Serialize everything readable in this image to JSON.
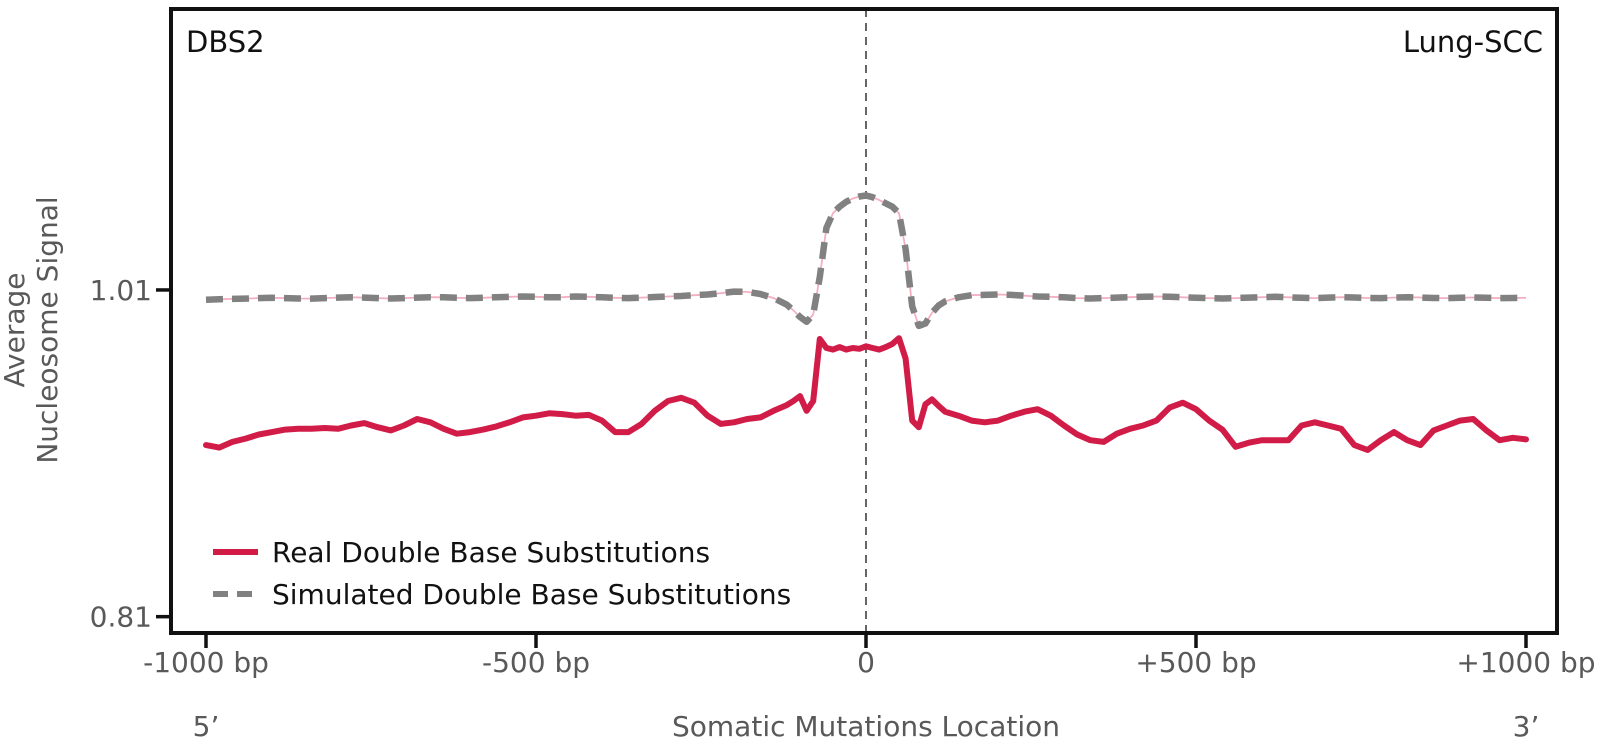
{
  "figure": {
    "signature_label": "DBS2",
    "cancer_type_label": "Lung-SCC",
    "five_prime_label": "5’",
    "three_prime_label": "3’"
  },
  "chart_data": {
    "type": "line",
    "title_left": "DBS2",
    "title_right": "Lung-SCC",
    "xlabel": "Somatic Mutations Location",
    "ylabel": "Average Nucleosome Signal",
    "ylabel_lines": [
      "Average",
      "Nucleosome Signal"
    ],
    "xlim": [
      -1000,
      1000
    ],
    "ylim": [
      0.8,
      1.182
    ],
    "grid": false,
    "legend_position": "lower left",
    "vline_x": 0,
    "vline_color": "#666666",
    "frame_color": "#111111",
    "x_ticks": [
      {
        "value": -1000,
        "label": "-1000 bp"
      },
      {
        "value": -500,
        "label": "-500 bp"
      },
      {
        "value": 0,
        "label": "0"
      },
      {
        "value": 500,
        "label": "+500 bp"
      },
      {
        "value": 1000,
        "label": "+1000 bp"
      }
    ],
    "y_ticks": [
      {
        "value": 1.01,
        "label": "1.01"
      },
      {
        "value": 0.81,
        "label": "0.81"
      }
    ],
    "x": [
      -1000,
      -980,
      -960,
      -940,
      -920,
      -900,
      -880,
      -860,
      -840,
      -820,
      -800,
      -780,
      -760,
      -740,
      -720,
      -700,
      -680,
      -660,
      -640,
      -620,
      -600,
      -580,
      -560,
      -540,
      -520,
      -500,
      -480,
      -460,
      -440,
      -420,
      -400,
      -380,
      -360,
      -340,
      -320,
      -300,
      -280,
      -260,
      -240,
      -220,
      -200,
      -180,
      -160,
      -140,
      -120,
      -110,
      -100,
      -90,
      -80,
      -70,
      -60,
      -50,
      -40,
      -30,
      -20,
      -10,
      0,
      10,
      20,
      30,
      40,
      50,
      60,
      70,
      80,
      90,
      100,
      110,
      120,
      140,
      160,
      180,
      200,
      220,
      240,
      260,
      280,
      300,
      320,
      340,
      360,
      380,
      400,
      420,
      440,
      460,
      480,
      500,
      520,
      540,
      560,
      580,
      600,
      620,
      640,
      660,
      680,
      700,
      720,
      740,
      760,
      780,
      800,
      820,
      840,
      860,
      880,
      900,
      920,
      940,
      960,
      980,
      1000
    ],
    "series": [
      {
        "name": "Real Double Base Substitutions",
        "color": "#d11c48",
        "style": "solid",
        "width": 6,
        "values": [
          0.915,
          0.9135,
          0.917,
          0.919,
          0.9215,
          0.923,
          0.9245,
          0.925,
          0.925,
          0.9255,
          0.925,
          0.927,
          0.9285,
          0.926,
          0.924,
          0.927,
          0.931,
          0.929,
          0.925,
          0.922,
          0.923,
          0.9245,
          0.9265,
          0.929,
          0.932,
          0.933,
          0.9345,
          0.934,
          0.933,
          0.9335,
          0.93,
          0.923,
          0.923,
          0.928,
          0.936,
          0.942,
          0.944,
          0.941,
          0.933,
          0.928,
          0.929,
          0.931,
          0.932,
          0.936,
          0.9395,
          0.942,
          0.945,
          0.936,
          0.942,
          0.98,
          0.9745,
          0.9735,
          0.975,
          0.9735,
          0.9745,
          0.974,
          0.9755,
          0.9745,
          0.9735,
          0.975,
          0.977,
          0.9805,
          0.968,
          0.93,
          0.926,
          0.94,
          0.943,
          0.939,
          0.9355,
          0.933,
          0.93,
          0.929,
          0.93,
          0.933,
          0.9355,
          0.937,
          0.933,
          0.927,
          0.9215,
          0.918,
          0.917,
          0.922,
          0.925,
          0.927,
          0.93,
          0.938,
          0.941,
          0.937,
          0.93,
          0.9245,
          0.914,
          0.9165,
          0.918,
          0.918,
          0.918,
          0.927,
          0.929,
          0.927,
          0.925,
          0.915,
          0.912,
          0.918,
          0.923,
          0.918,
          0.915,
          0.924,
          0.927,
          0.93,
          0.931,
          0.924,
          0.918,
          0.9195,
          0.9185
        ]
      },
      {
        "name": "Simulated Double Base Substitutions",
        "color": "#818181",
        "style": "dashed",
        "width": 6.5,
        "underlay_color": "#f5afc0",
        "values": [
          1.004,
          1.0043,
          1.0045,
          1.0047,
          1.005,
          1.0052,
          1.005,
          1.0048,
          1.0047,
          1.005,
          1.0053,
          1.0055,
          1.0053,
          1.005,
          1.0048,
          1.005,
          1.0053,
          1.0056,
          1.0055,
          1.0052,
          1.005,
          1.0052,
          1.0056,
          1.0058,
          1.006,
          1.0058,
          1.0055,
          1.0056,
          1.006,
          1.0058,
          1.0055,
          1.0052,
          1.005,
          1.0053,
          1.0057,
          1.006,
          1.0063,
          1.0068,
          1.0072,
          1.008,
          1.009,
          1.0088,
          1.0075,
          1.005,
          1.001,
          0.9975,
          0.9935,
          0.9905,
          0.995,
          1.018,
          1.048,
          1.057,
          1.061,
          1.064,
          1.066,
          1.0672,
          1.0678,
          1.0668,
          1.065,
          1.063,
          1.061,
          1.057,
          1.035,
          1.0,
          0.988,
          0.9895,
          0.996,
          1.0005,
          1.003,
          1.0055,
          1.0068,
          1.007,
          1.0072,
          1.007,
          1.0065,
          1.006,
          1.0058,
          1.0055,
          1.005,
          1.0048,
          1.005,
          1.0053,
          1.0056,
          1.0058,
          1.006,
          1.0058,
          1.0055,
          1.0052,
          1.005,
          1.0048,
          1.005,
          1.0053,
          1.0056,
          1.0058,
          1.0055,
          1.0052,
          1.005,
          1.0053,
          1.0056,
          1.0054,
          1.0051,
          1.005,
          1.0053,
          1.0056,
          1.0054,
          1.0051,
          1.005,
          1.0052,
          1.0054,
          1.0052,
          1.005,
          1.0051,
          1.0052
        ]
      }
    ]
  }
}
